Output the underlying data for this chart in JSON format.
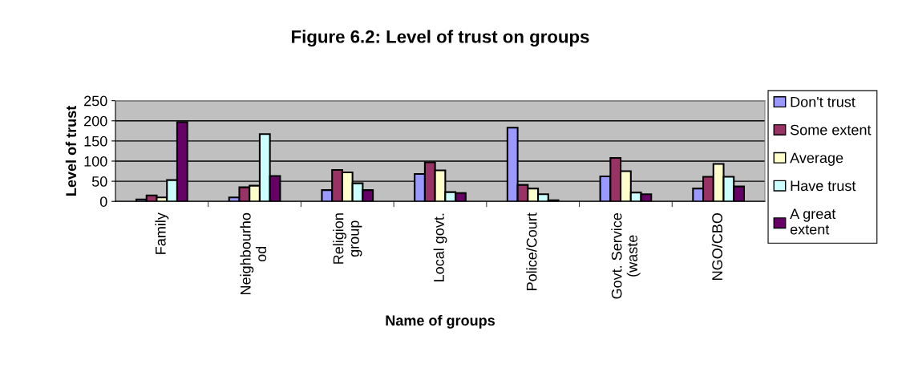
{
  "chart_data": {
    "type": "bar",
    "title": "Figure 6.2: Level of trust on groups",
    "xlabel": "Name of groups",
    "ylabel": "Level of trust",
    "categories": [
      "Family",
      "Neighbourho\nod",
      "Religion\ngroup",
      "Local govt.",
      "Police/Court",
      "Govt. Service\n(waste",
      "NGO/CBO"
    ],
    "series": [
      {
        "name": "Don't trust",
        "color": "#9999ff",
        "values": [
          5,
          10,
          28,
          68,
          183,
          62,
          32
        ]
      },
      {
        "name": "Some extent",
        "color": "#993366",
        "values": [
          15,
          35,
          78,
          97,
          41,
          108,
          61
        ]
      },
      {
        "name": "Average",
        "color": "#ffffcc",
        "values": [
          10,
          39,
          72,
          77,
          32,
          75,
          93
        ]
      },
      {
        "name": "Have trust",
        "color": "#ccffff",
        "values": [
          53,
          167,
          45,
          23,
          18,
          22,
          61
        ]
      },
      {
        "name": "A great\nextent",
        "color": "#660066",
        "values": [
          197,
          63,
          28,
          21,
          3,
          18,
          37
        ]
      }
    ],
    "ylim": [
      0,
      250
    ],
    "yticks": [
      0,
      50,
      100,
      150,
      200,
      250
    ],
    "grid": "y",
    "legend": "right"
  }
}
